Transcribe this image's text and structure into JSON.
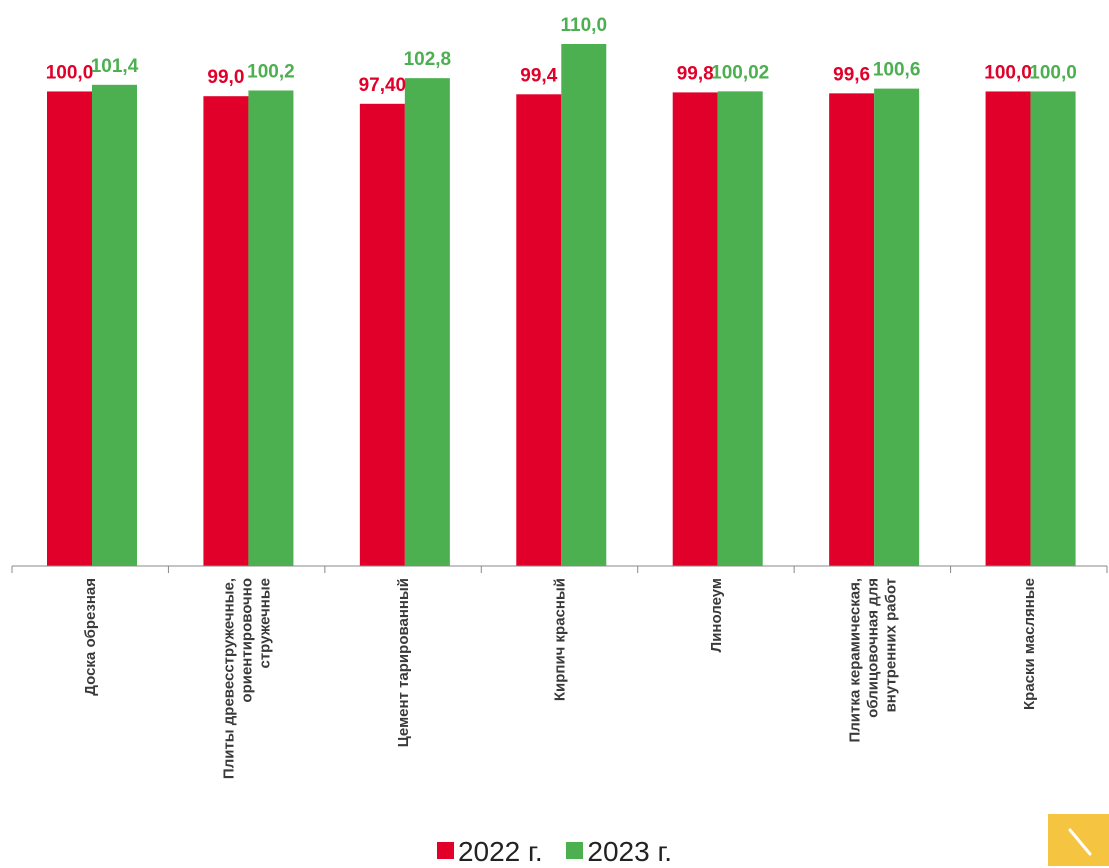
{
  "chart_data": {
    "type": "bar",
    "categories": [
      [
        "Доска обрезная"
      ],
      [
        "Плиты древесстружечные,",
        "ориентировочно",
        "стружечные"
      ],
      [
        "Цемент тарированный"
      ],
      [
        "Кирпич красный"
      ],
      [
        "Линолеум"
      ],
      [
        "Плитка керамическая,",
        "облицовочная для",
        "внутренних  работ"
      ],
      [
        "Краски масляные"
      ]
    ],
    "series": [
      {
        "name": "2022 г.",
        "color": "#e0002a",
        "values": [
          100.0,
          99.0,
          97.4,
          99.4,
          99.8,
          99.6,
          100.0
        ],
        "labels": [
          "100,0",
          "99,0",
          "97,40",
          "99,4",
          "99,8",
          "99,6",
          "100,0"
        ]
      },
      {
        "name": "2023 г.",
        "color": "#4caf50",
        "values": [
          101.4,
          100.2,
          102.8,
          110.0,
          100.02,
          100.6,
          100.0
        ],
        "labels": [
          "101,4",
          "100,2",
          "102,8",
          "110,0",
          "100,02",
          "100,6",
          "100,0"
        ]
      }
    ],
    "ylim": [
      0,
      110
    ],
    "grid": false,
    "legend_position": "bottom"
  },
  "corner_icon": "pen-icon"
}
